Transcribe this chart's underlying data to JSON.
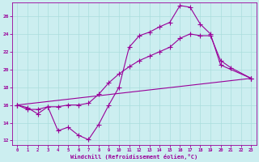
{
  "xlabel": "Windchill (Refroidissement éolien,°C)",
  "bg_color": "#cceef0",
  "line_color": "#990099",
  "grid_color": "#aadddd",
  "x_ticks": [
    0,
    1,
    2,
    3,
    4,
    5,
    6,
    7,
    8,
    9,
    10,
    11,
    12,
    13,
    14,
    15,
    16,
    17,
    18,
    19,
    20,
    21,
    22,
    23
  ],
  "y_ticks": [
    12,
    14,
    16,
    18,
    20,
    22,
    24,
    26
  ],
  "xlim": [
    -0.5,
    23.5
  ],
  "ylim": [
    11.5,
    27.5
  ],
  "line1_x": [
    0,
    1,
    2,
    3,
    4,
    5,
    6,
    7,
    8,
    9,
    10,
    11,
    12,
    13,
    14,
    15,
    16,
    17,
    18,
    19,
    20,
    23
  ],
  "line1_y": [
    16.0,
    15.7,
    15.0,
    15.8,
    13.1,
    13.5,
    12.6,
    12.1,
    13.8,
    16.0,
    18.0,
    22.5,
    23.8,
    24.2,
    24.8,
    25.3,
    27.2,
    27.0,
    25.1,
    24.0,
    20.5,
    19.0
  ],
  "line2_x": [
    0,
    23
  ],
  "line2_y": [
    16.0,
    19.0
  ],
  "line3_x": [
    0,
    1,
    2,
    3,
    4,
    5,
    6,
    7,
    8,
    9,
    10,
    11,
    12,
    13,
    14,
    15,
    16,
    17,
    18,
    19,
    20,
    21,
    23
  ],
  "line3_y": [
    16.0,
    15.5,
    15.5,
    15.8,
    15.8,
    16.0,
    16.0,
    16.2,
    17.2,
    18.5,
    19.5,
    20.3,
    21.0,
    21.5,
    22.0,
    22.5,
    23.5,
    24.0,
    23.8,
    23.8,
    21.0,
    20.2,
    19.0
  ]
}
